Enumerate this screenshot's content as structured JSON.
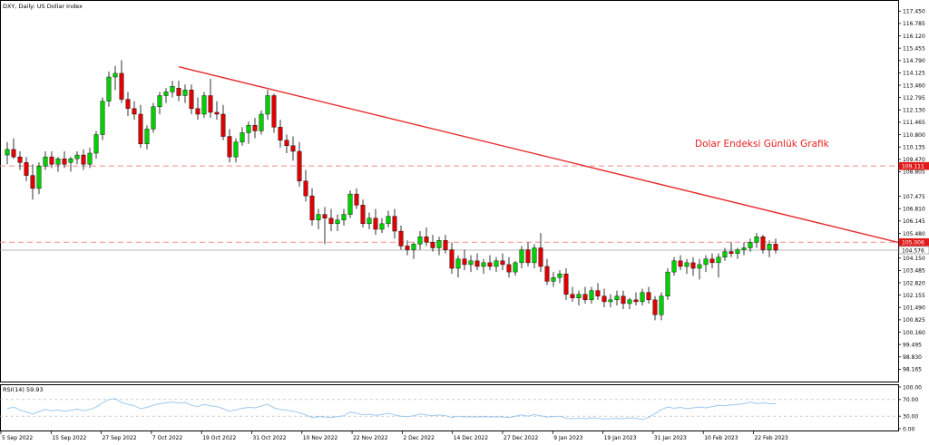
{
  "title": "DXY, Daily:  US Dollar Index",
  "annotation": "Dolar Endeksi Günlük Grafik",
  "colors": {
    "up": "#00d000",
    "down": "#e00000",
    "trendline": "#e82c2c",
    "hline": "#f08a8a",
    "rsi": "#9ec8ee",
    "grid": "#c0c0c0",
    "axis": "#000000",
    "price_tag": "#e01a1a"
  },
  "chart_data": [
    {
      "type": "candlestick",
      "title": "DXY, Daily:  US Dollar Index",
      "y_ticks": [
        "117.450",
        "116.785",
        "116.120",
        "115.455",
        "114.790",
        "114.125",
        "113.460",
        "112.795",
        "112.130",
        "111.465",
        "110.800",
        "110.135",
        "109.470",
        "108.805",
        "107.475",
        "106.810",
        "106.145",
        "105.480",
        "104.150",
        "103.485",
        "102.820",
        "102.155",
        "101.490",
        "100.825",
        "100.160",
        "99.495",
        "98.830",
        "98.165"
      ],
      "ylim": [
        97.5,
        118.0
      ],
      "x_labels": [
        "5 Sep 2022",
        "15 Sep 2022",
        "27 Sep 2022",
        "7 Oct 2022",
        "19 Oct 2022",
        "31 Oct 2022",
        "10 Nov 2022",
        "22 Nov 2022",
        "2 Dec 2022",
        "14 Dec 2022",
        "27 Dec 2022",
        "9 Jan 2023",
        "19 Jan 2023",
        "31 Jan 2023",
        "10 Feb 2023",
        "22 Feb 2023"
      ],
      "horizontal_lines": [
        {
          "value": 109.111,
          "label": "109.111"
        },
        {
          "value": 105.006,
          "label": "105.006"
        }
      ],
      "current_price": {
        "value": 104.576,
        "label": "104.576"
      },
      "trendline": {
        "start": {
          "x": 27,
          "y": 114.45
        },
        "end": {
          "x": 163,
          "y": 103.1
        }
      },
      "candles": [
        {
          "x": 0,
          "o": 109.7,
          "h": 110.4,
          "l": 109.2,
          "c": 110.0
        },
        {
          "x": 1,
          "o": 110.0,
          "h": 110.6,
          "l": 109.5,
          "c": 109.6
        },
        {
          "x": 2,
          "o": 109.6,
          "h": 109.9,
          "l": 108.9,
          "c": 109.3
        },
        {
          "x": 3,
          "o": 109.3,
          "h": 109.6,
          "l": 108.3,
          "c": 108.6
        },
        {
          "x": 4,
          "o": 108.6,
          "h": 109.2,
          "l": 107.3,
          "c": 107.9
        },
        {
          "x": 5,
          "o": 107.9,
          "h": 109.3,
          "l": 107.6,
          "c": 109.1
        },
        {
          "x": 6,
          "o": 109.1,
          "h": 109.9,
          "l": 108.9,
          "c": 109.6
        },
        {
          "x": 7,
          "o": 109.6,
          "h": 109.9,
          "l": 109.0,
          "c": 109.2
        },
        {
          "x": 8,
          "o": 109.2,
          "h": 109.6,
          "l": 108.8,
          "c": 109.5
        },
        {
          "x": 9,
          "o": 109.5,
          "h": 109.9,
          "l": 109.0,
          "c": 109.2
        },
        {
          "x": 10,
          "o": 109.3,
          "h": 109.6,
          "l": 108.8,
          "c": 109.5
        },
        {
          "x": 11,
          "o": 109.5,
          "h": 109.9,
          "l": 109.2,
          "c": 109.7
        },
        {
          "x": 12,
          "o": 109.7,
          "h": 110.0,
          "l": 108.9,
          "c": 109.2
        },
        {
          "x": 13,
          "o": 109.2,
          "h": 110.1,
          "l": 109.0,
          "c": 109.8
        },
        {
          "x": 14,
          "o": 109.8,
          "h": 111.0,
          "l": 109.5,
          "c": 110.8
        },
        {
          "x": 15,
          "o": 110.8,
          "h": 112.8,
          "l": 110.5,
          "c": 112.6
        },
        {
          "x": 16,
          "o": 112.6,
          "h": 114.2,
          "l": 112.3,
          "c": 113.9
        },
        {
          "x": 17,
          "o": 113.9,
          "h": 114.5,
          "l": 113.2,
          "c": 114.1
        },
        {
          "x": 18,
          "o": 114.1,
          "h": 114.8,
          "l": 112.5,
          "c": 112.7
        },
        {
          "x": 19,
          "o": 112.7,
          "h": 113.1,
          "l": 111.8,
          "c": 112.2
        },
        {
          "x": 20,
          "o": 112.2,
          "h": 112.6,
          "l": 111.6,
          "c": 111.9
        },
        {
          "x": 21,
          "o": 111.9,
          "h": 112.4,
          "l": 110.1,
          "c": 110.3
        },
        {
          "x": 22,
          "o": 110.3,
          "h": 111.3,
          "l": 110.0,
          "c": 111.1
        },
        {
          "x": 23,
          "o": 111.1,
          "h": 112.5,
          "l": 110.9,
          "c": 112.3
        },
        {
          "x": 24,
          "o": 112.3,
          "h": 113.1,
          "l": 111.9,
          "c": 112.9
        },
        {
          "x": 25,
          "o": 112.9,
          "h": 113.3,
          "l": 112.5,
          "c": 113.1
        },
        {
          "x": 26,
          "o": 113.1,
          "h": 113.7,
          "l": 112.8,
          "c": 113.4
        },
        {
          "x": 27,
          "o": 113.3,
          "h": 113.7,
          "l": 112.6,
          "c": 112.9
        },
        {
          "x": 28,
          "o": 112.9,
          "h": 113.5,
          "l": 112.5,
          "c": 113.2
        },
        {
          "x": 29,
          "o": 113.2,
          "h": 113.5,
          "l": 111.9,
          "c": 112.2
        },
        {
          "x": 30,
          "o": 112.2,
          "h": 112.8,
          "l": 111.6,
          "c": 111.9
        },
        {
          "x": 31,
          "o": 111.9,
          "h": 113.1,
          "l": 111.7,
          "c": 112.9
        },
        {
          "x": 32,
          "o": 112.9,
          "h": 113.8,
          "l": 111.7,
          "c": 112.0
        },
        {
          "x": 33,
          "o": 112.0,
          "h": 112.6,
          "l": 111.6,
          "c": 111.9
        },
        {
          "x": 34,
          "o": 111.9,
          "h": 112.4,
          "l": 110.5,
          "c": 110.7
        },
        {
          "x": 35,
          "o": 110.7,
          "h": 111.1,
          "l": 109.3,
          "c": 109.6
        },
        {
          "x": 36,
          "o": 109.6,
          "h": 110.6,
          "l": 109.3,
          "c": 110.4
        },
        {
          "x": 37,
          "o": 110.4,
          "h": 111.2,
          "l": 110.2,
          "c": 110.9
        },
        {
          "x": 38,
          "o": 110.9,
          "h": 111.5,
          "l": 110.3,
          "c": 111.3
        },
        {
          "x": 39,
          "o": 111.3,
          "h": 111.7,
          "l": 110.6,
          "c": 111.0
        },
        {
          "x": 40,
          "o": 111.0,
          "h": 112.1,
          "l": 110.8,
          "c": 111.9
        },
        {
          "x": 41,
          "o": 111.9,
          "h": 113.2,
          "l": 111.6,
          "c": 112.9
        },
        {
          "x": 42,
          "o": 112.9,
          "h": 113.0,
          "l": 110.9,
          "c": 111.2
        },
        {
          "x": 43,
          "o": 111.2,
          "h": 111.6,
          "l": 110.1,
          "c": 110.5
        },
        {
          "x": 44,
          "o": 110.5,
          "h": 110.8,
          "l": 109.8,
          "c": 110.2
        },
        {
          "x": 45,
          "o": 110.2,
          "h": 110.7,
          "l": 109.4,
          "c": 109.9
        },
        {
          "x": 46,
          "o": 109.9,
          "h": 110.4,
          "l": 108.0,
          "c": 108.3
        },
        {
          "x": 47,
          "o": 108.3,
          "h": 108.9,
          "l": 107.2,
          "c": 107.5
        },
        {
          "x": 48,
          "o": 107.5,
          "h": 107.9,
          "l": 105.9,
          "c": 106.2
        },
        {
          "x": 49,
          "o": 106.2,
          "h": 106.8,
          "l": 105.7,
          "c": 106.5
        },
        {
          "x": 50,
          "o": 106.5,
          "h": 106.9,
          "l": 104.9,
          "c": 106.3
        },
        {
          "x": 51,
          "o": 106.3,
          "h": 106.8,
          "l": 105.6,
          "c": 106.0
        },
        {
          "x": 52,
          "o": 106.0,
          "h": 106.5,
          "l": 105.6,
          "c": 106.2
        },
        {
          "x": 53,
          "o": 106.2,
          "h": 106.8,
          "l": 105.9,
          "c": 106.5
        },
        {
          "x": 54,
          "o": 106.5,
          "h": 107.8,
          "l": 106.3,
          "c": 107.6
        },
        {
          "x": 55,
          "o": 107.6,
          "h": 107.9,
          "l": 106.8,
          "c": 107.0
        },
        {
          "x": 56,
          "o": 107.0,
          "h": 107.3,
          "l": 105.8,
          "c": 106.0
        },
        {
          "x": 57,
          "o": 106.0,
          "h": 106.6,
          "l": 105.7,
          "c": 106.3
        },
        {
          "x": 58,
          "o": 106.3,
          "h": 106.8,
          "l": 105.4,
          "c": 105.7
        },
        {
          "x": 59,
          "o": 105.7,
          "h": 106.3,
          "l": 105.5,
          "c": 106.0
        },
        {
          "x": 60,
          "o": 106.0,
          "h": 106.7,
          "l": 105.8,
          "c": 106.4
        },
        {
          "x": 61,
          "o": 106.4,
          "h": 106.8,
          "l": 105.2,
          "c": 105.6
        },
        {
          "x": 62,
          "o": 105.6,
          "h": 105.9,
          "l": 104.6,
          "c": 104.8
        },
        {
          "x": 63,
          "o": 104.8,
          "h": 105.1,
          "l": 104.3,
          "c": 104.6
        },
        {
          "x": 64,
          "o": 104.6,
          "h": 105.0,
          "l": 104.1,
          "c": 104.9
        },
        {
          "x": 65,
          "o": 104.9,
          "h": 105.6,
          "l": 104.6,
          "c": 105.3
        },
        {
          "x": 66,
          "o": 105.3,
          "h": 105.8,
          "l": 104.8,
          "c": 105.0
        },
        {
          "x": 67,
          "o": 105.0,
          "h": 105.4,
          "l": 104.5,
          "c": 104.7
        },
        {
          "x": 68,
          "o": 104.7,
          "h": 105.3,
          "l": 104.3,
          "c": 105.1
        },
        {
          "x": 69,
          "o": 105.1,
          "h": 105.4,
          "l": 104.4,
          "c": 104.6
        },
        {
          "x": 70,
          "o": 104.6,
          "h": 105.0,
          "l": 103.3,
          "c": 103.6
        },
        {
          "x": 71,
          "o": 103.6,
          "h": 104.3,
          "l": 103.1,
          "c": 104.1
        },
        {
          "x": 72,
          "o": 104.1,
          "h": 104.6,
          "l": 103.5,
          "c": 103.8
        },
        {
          "x": 73,
          "o": 103.8,
          "h": 104.3,
          "l": 103.4,
          "c": 104.0
        },
        {
          "x": 74,
          "o": 104.0,
          "h": 104.4,
          "l": 103.5,
          "c": 103.7
        },
        {
          "x": 75,
          "o": 103.7,
          "h": 104.1,
          "l": 103.3,
          "c": 103.9
        },
        {
          "x": 76,
          "o": 103.9,
          "h": 104.3,
          "l": 103.5,
          "c": 103.7
        },
        {
          "x": 77,
          "o": 103.7,
          "h": 104.2,
          "l": 103.4,
          "c": 104.0
        },
        {
          "x": 78,
          "o": 104.0,
          "h": 104.4,
          "l": 103.5,
          "c": 103.8
        },
        {
          "x": 79,
          "o": 103.8,
          "h": 104.2,
          "l": 103.1,
          "c": 103.4
        },
        {
          "x": 80,
          "o": 103.4,
          "h": 104.0,
          "l": 103.2,
          "c": 103.9
        },
        {
          "x": 81,
          "o": 103.9,
          "h": 104.8,
          "l": 103.6,
          "c": 104.6
        },
        {
          "x": 82,
          "o": 104.6,
          "h": 105.0,
          "l": 103.7,
          "c": 103.9
        },
        {
          "x": 83,
          "o": 103.9,
          "h": 104.9,
          "l": 103.6,
          "c": 104.7
        },
        {
          "x": 84,
          "o": 104.7,
          "h": 105.5,
          "l": 103.4,
          "c": 103.7
        },
        {
          "x": 85,
          "o": 103.7,
          "h": 104.1,
          "l": 102.7,
          "c": 102.9
        },
        {
          "x": 86,
          "o": 102.9,
          "h": 103.4,
          "l": 102.6,
          "c": 103.1
        },
        {
          "x": 87,
          "o": 103.1,
          "h": 103.5,
          "l": 102.8,
          "c": 103.3
        },
        {
          "x": 88,
          "o": 103.3,
          "h": 103.6,
          "l": 101.9,
          "c": 102.2
        },
        {
          "x": 89,
          "o": 102.2,
          "h": 102.6,
          "l": 101.8,
          "c": 102.0
        },
        {
          "x": 90,
          "o": 102.0,
          "h": 102.4,
          "l": 101.6,
          "c": 102.2
        },
        {
          "x": 91,
          "o": 102.2,
          "h": 102.6,
          "l": 101.7,
          "c": 101.9
        },
        {
          "x": 92,
          "o": 101.9,
          "h": 102.6,
          "l": 101.7,
          "c": 102.4
        },
        {
          "x": 93,
          "o": 102.4,
          "h": 102.8,
          "l": 101.9,
          "c": 102.1
        },
        {
          "x": 94,
          "o": 102.1,
          "h": 102.5,
          "l": 101.5,
          "c": 101.8
        },
        {
          "x": 95,
          "o": 101.8,
          "h": 102.2,
          "l": 101.5,
          "c": 101.9
        },
        {
          "x": 96,
          "o": 101.9,
          "h": 102.4,
          "l": 101.6,
          "c": 102.1
        },
        {
          "x": 97,
          "o": 102.1,
          "h": 102.4,
          "l": 101.4,
          "c": 101.7
        },
        {
          "x": 98,
          "o": 101.7,
          "h": 102.0,
          "l": 101.4,
          "c": 101.9
        },
        {
          "x": 99,
          "o": 101.9,
          "h": 102.3,
          "l": 101.6,
          "c": 101.8
        },
        {
          "x": 100,
          "o": 101.8,
          "h": 102.5,
          "l": 101.6,
          "c": 102.3
        },
        {
          "x": 101,
          "o": 102.3,
          "h": 102.6,
          "l": 101.7,
          "c": 101.9
        },
        {
          "x": 102,
          "o": 101.9,
          "h": 102.1,
          "l": 100.8,
          "c": 101.1
        },
        {
          "x": 103,
          "o": 101.1,
          "h": 102.3,
          "l": 100.8,
          "c": 102.1
        },
        {
          "x": 104,
          "o": 102.1,
          "h": 103.6,
          "l": 101.9,
          "c": 103.4
        },
        {
          "x": 105,
          "o": 103.4,
          "h": 104.2,
          "l": 103.2,
          "c": 104.0
        },
        {
          "x": 106,
          "o": 104.0,
          "h": 104.3,
          "l": 103.5,
          "c": 103.7
        },
        {
          "x": 107,
          "o": 103.7,
          "h": 104.1,
          "l": 103.3,
          "c": 103.9
        },
        {
          "x": 108,
          "o": 103.9,
          "h": 104.2,
          "l": 103.2,
          "c": 103.6
        },
        {
          "x": 109,
          "o": 103.6,
          "h": 104.1,
          "l": 103.0,
          "c": 103.8
        },
        {
          "x": 110,
          "o": 103.8,
          "h": 104.3,
          "l": 103.4,
          "c": 104.1
        },
        {
          "x": 111,
          "o": 104.1,
          "h": 104.4,
          "l": 103.6,
          "c": 103.9
        },
        {
          "x": 112,
          "o": 103.9,
          "h": 104.4,
          "l": 103.1,
          "c": 104.2
        },
        {
          "x": 113,
          "o": 104.2,
          "h": 104.7,
          "l": 104.0,
          "c": 104.5
        },
        {
          "x": 114,
          "o": 104.5,
          "h": 105.0,
          "l": 104.2,
          "c": 104.4
        },
        {
          "x": 115,
          "o": 104.4,
          "h": 104.7,
          "l": 104.1,
          "c": 104.6
        },
        {
          "x": 116,
          "o": 104.6,
          "h": 105.0,
          "l": 104.3,
          "c": 104.7
        },
        {
          "x": 117,
          "o": 104.7,
          "h": 105.2,
          "l": 104.5,
          "c": 105.0
        },
        {
          "x": 118,
          "o": 105.0,
          "h": 105.5,
          "l": 104.7,
          "c": 105.3
        },
        {
          "x": 119,
          "o": 105.3,
          "h": 105.4,
          "l": 104.4,
          "c": 104.6
        },
        {
          "x": 120,
          "o": 104.6,
          "h": 105.1,
          "l": 104.2,
          "c": 104.9
        },
        {
          "x": 121,
          "o": 104.9,
          "h": 105.2,
          "l": 104.4,
          "c": 104.58
        }
      ]
    },
    {
      "type": "line",
      "title": "RSI(14) 59.93",
      "y_ticks": [
        "100.00",
        "70.00",
        "30.00",
        "0.00"
      ],
      "ylim": [
        0,
        100
      ],
      "reference_lines": [
        70,
        30
      ],
      "series": [
        {
          "values": [
            48,
            52,
            45,
            40,
            35,
            41,
            46,
            43,
            45,
            42,
            44,
            47,
            43,
            46,
            52,
            62,
            70,
            72,
            63,
            58,
            55,
            48,
            51,
            56,
            60,
            62,
            64,
            61,
            63,
            56,
            53,
            58,
            55,
            53,
            48,
            42,
            45,
            49,
            51,
            50,
            54,
            59,
            50,
            46,
            44,
            42,
            38,
            33,
            27,
            29,
            28,
            27,
            29,
            31,
            40,
            37,
            33,
            35,
            32,
            34,
            37,
            33,
            30,
            29,
            31,
            35,
            33,
            31,
            33,
            31,
            27,
            30,
            28,
            29,
            28,
            29,
            28,
            29,
            28,
            27,
            30,
            33,
            30,
            34,
            31,
            28,
            29,
            30,
            25,
            24,
            25,
            24,
            26,
            25,
            23,
            24,
            25,
            24,
            26,
            25,
            22,
            27,
            36,
            46,
            52,
            49,
            51,
            48,
            50,
            52,
            50,
            53,
            56,
            55,
            57,
            58,
            60,
            64,
            60,
            62,
            60,
            59.93
          ]
        }
      ]
    }
  ]
}
